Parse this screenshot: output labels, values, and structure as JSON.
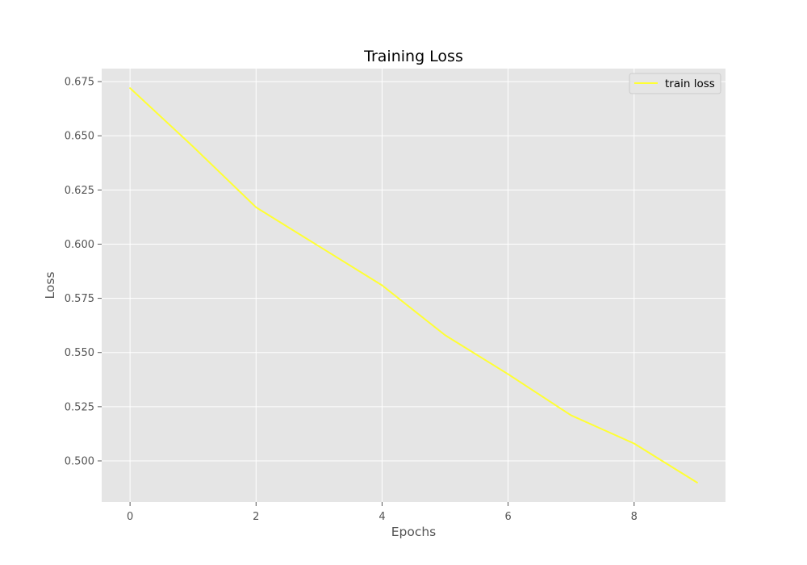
{
  "chart_data": {
    "type": "line",
    "title": "Training Loss",
    "xlabel": "Epochs",
    "ylabel": "Loss",
    "xlim": [
      -0.45,
      9.45
    ],
    "ylim": [
      0.481,
      0.681
    ],
    "xticks": [
      0,
      2,
      4,
      6,
      8
    ],
    "yticks": [
      0.5,
      0.525,
      0.55,
      0.575,
      0.6,
      0.625,
      0.65,
      0.675
    ],
    "ytick_labels": [
      "0.500",
      "0.525",
      "0.550",
      "0.575",
      "0.600",
      "0.625",
      "0.650",
      "0.675"
    ],
    "grid": true,
    "legend_position": "top-right",
    "series": [
      {
        "name": "train loss",
        "color": "#ffff33",
        "x": [
          0,
          1,
          2,
          3,
          4,
          5,
          6,
          7,
          8,
          9
        ],
        "y": [
          0.672,
          0.645,
          0.617,
          0.599,
          0.581,
          0.558,
          0.54,
          0.521,
          0.508,
          0.49
        ]
      }
    ]
  },
  "style": {
    "plot_background": "#e5e5e5",
    "grid_color": "#ffffff"
  }
}
